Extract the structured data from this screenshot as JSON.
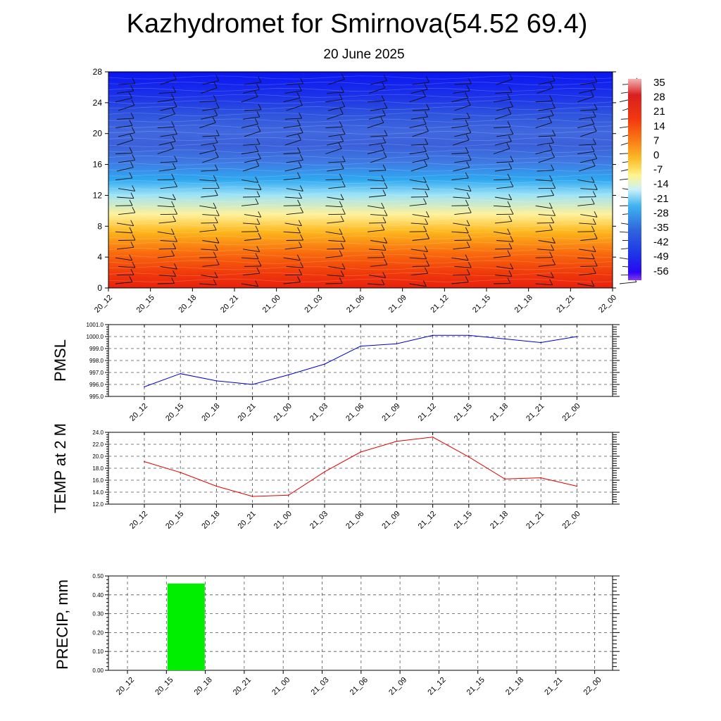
{
  "title": "Kazhydromet for Smirnova(54.52 69.4)",
  "subtitle": "20 June 2025",
  "times": [
    "20_12",
    "20_15",
    "20_18",
    "20_21",
    "21_00",
    "21_03",
    "21_06",
    "21_09",
    "21_12",
    "21_15",
    "21_18",
    "21_21",
    "22_00"
  ],
  "chart_data": [
    {
      "type": "heatmap",
      "name": "temperature-cross-section",
      "x": [
        "20_12",
        "20_15",
        "20_18",
        "20_21",
        "21_00",
        "21_03",
        "21_06",
        "21_09",
        "21_12",
        "21_15",
        "21_18",
        "21_21",
        "22_00"
      ],
      "y_ticks": [
        0,
        4,
        8,
        12,
        16,
        20,
        24,
        28
      ],
      "ylim": [
        0,
        28
      ],
      "colorbar_labels": [
        35,
        28,
        21,
        14,
        7,
        0,
        -7,
        -14,
        -21,
        -28,
        -35,
        -42,
        -49,
        -56
      ],
      "colorbar_range": [
        -60,
        38
      ],
      "wind_barbs": true
    },
    {
      "type": "line",
      "name": "pmsl",
      "ylabel": "PMSL",
      "x": [
        "20_12",
        "20_15",
        "20_18",
        "20_21",
        "21_00",
        "21_03",
        "21_06",
        "21_09",
        "21_12",
        "21_15",
        "21_18",
        "21_21",
        "22_00"
      ],
      "values": [
        995.8,
        996.9,
        996.3,
        996.0,
        996.8,
        997.7,
        999.2,
        999.4,
        1000.1,
        1000.1,
        999.8,
        999.5,
        1000.0
      ],
      "ylim": [
        995.0,
        1001.0
      ],
      "y_ticks": [
        "995.0",
        "996.0",
        "997.0",
        "998.0",
        "999.0",
        "1000.0",
        "1001.0"
      ],
      "color": "#0000cc",
      "grid": true
    },
    {
      "type": "line",
      "name": "temp-2m",
      "ylabel": "TEMP at 2 M",
      "x": [
        "20_12",
        "20_15",
        "20_18",
        "20_21",
        "21_00",
        "21_03",
        "21_06",
        "21_09",
        "21_12",
        "21_15",
        "21_18",
        "21_21",
        "22_00"
      ],
      "values": [
        19.1,
        17.3,
        15.0,
        13.3,
        13.5,
        17.4,
        20.7,
        22.5,
        23.2,
        19.9,
        16.2,
        16.4,
        15.0
      ],
      "ylim": [
        12.0,
        24.0
      ],
      "y_ticks": [
        "12.0",
        "14.0",
        "16.0",
        "18.0",
        "20.0",
        "22.0",
        "24.0"
      ],
      "color": "#e00000",
      "grid": true
    },
    {
      "type": "bar",
      "name": "precip",
      "ylabel": "PRECIP, mm",
      "categories": [
        "20_12",
        "20_15",
        "20_18",
        "20_21",
        "21_00",
        "21_03",
        "21_06",
        "21_09",
        "21_12",
        "21_15",
        "21_18",
        "21_21",
        "22_00"
      ],
      "values": [
        0,
        0.46,
        0,
        0,
        0,
        0,
        0,
        0,
        0,
        0,
        0,
        0,
        0
      ],
      "ylim": [
        0.0,
        0.5
      ],
      "y_ticks": [
        "0.00",
        "0.10",
        "0.20",
        "0.30",
        "0.40",
        "0.50"
      ],
      "color": "#00ee00",
      "grid": true
    }
  ]
}
